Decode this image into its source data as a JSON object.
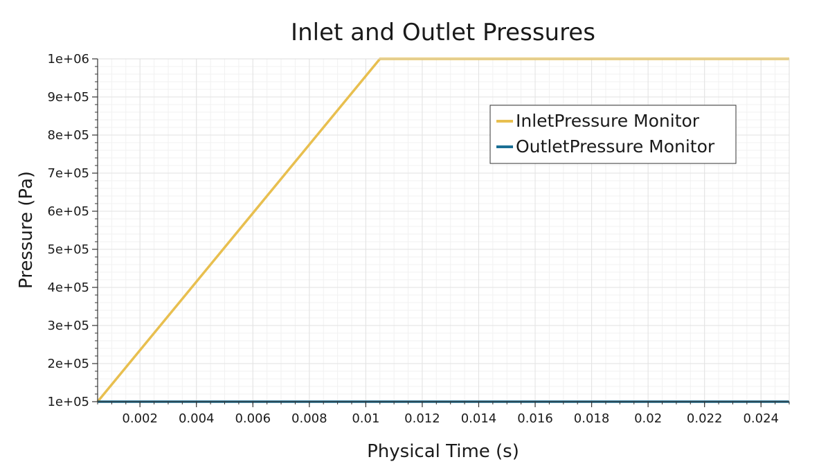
{
  "chart_data": {
    "type": "line",
    "title": "Inlet and Outlet Pressures",
    "xlabel": "Physical Time (s)",
    "ylabel": "Pressure (Pa)",
    "xlim": [
      0.0005,
      0.025
    ],
    "ylim": [
      100000,
      1000000
    ],
    "xticks": [
      0.002,
      0.004,
      0.006,
      0.008,
      0.01,
      0.012,
      0.014,
      0.016,
      0.018,
      0.02,
      0.022,
      0.024
    ],
    "xtick_labels": [
      "0.002",
      "0.004",
      "0.006",
      "0.008",
      "0.01",
      "0.012",
      "0.014",
      "0.016",
      "0.018",
      "0.02",
      "0.022",
      "0.024"
    ],
    "yticks": [
      100000,
      200000,
      300000,
      400000,
      500000,
      600000,
      700000,
      800000,
      900000,
      1000000
    ],
    "ytick_labels": [
      "1e+05",
      "2e+05",
      "3e+05",
      "4e+05",
      "5e+05",
      "6e+05",
      "7e+05",
      "8e+05",
      "9e+05",
      "1e+06"
    ],
    "grid": true,
    "legend_position": "top-right",
    "series": [
      {
        "name": "InletPressure Monitor",
        "color": "#e8bf4f",
        "x": [
          0.0005,
          0.0105,
          0.025
        ],
        "y": [
          100000,
          1000000,
          1000000
        ]
      },
      {
        "name": "OutletPressure Monitor",
        "color": "#1a6f94",
        "x": [
          0.0005,
          0.025
        ],
        "y": [
          100000,
          100000
        ]
      }
    ]
  }
}
